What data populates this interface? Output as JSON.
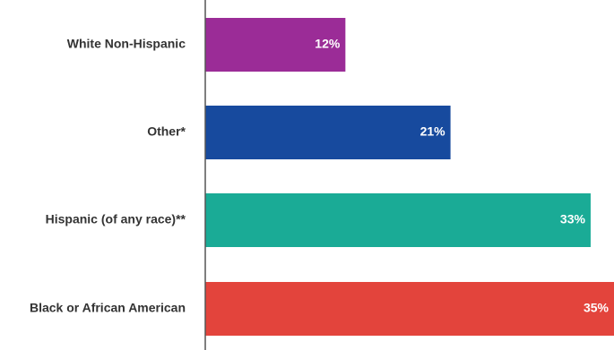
{
  "chart_data": {
    "type": "bar",
    "orientation": "horizontal",
    "title": "",
    "categories": [
      "White Non-Hispanic",
      "Other*",
      "Hispanic (of any race)**",
      "Black or African American"
    ],
    "values": [
      12,
      21,
      33,
      35
    ],
    "value_labels": [
      "12%",
      "21%",
      "33%",
      "35%"
    ],
    "unit": "%",
    "colors": [
      "#9b2c97",
      "#174a9e",
      "#1aab96",
      "#e3443c"
    ],
    "xlim": [
      0,
      35
    ],
    "grid": false,
    "legend": "none"
  }
}
